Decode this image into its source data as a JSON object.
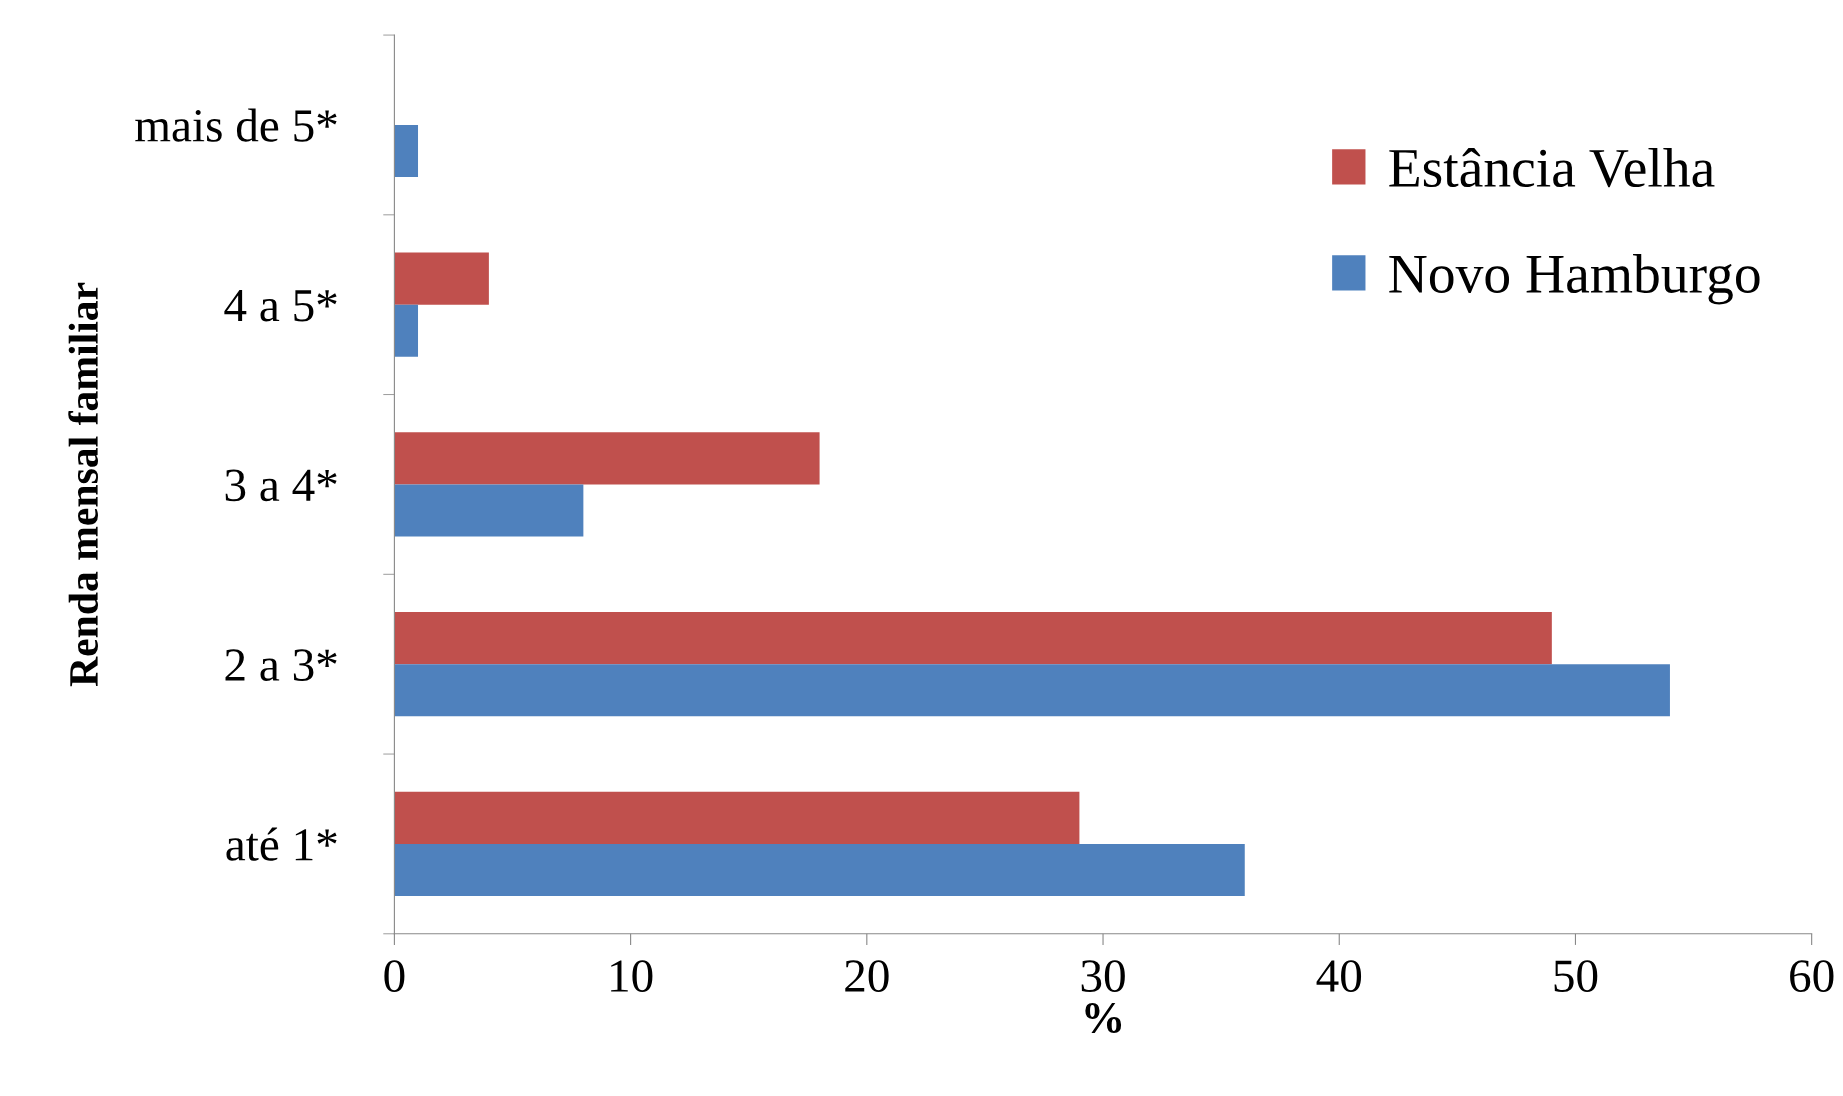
{
  "chart_data": {
    "type": "bar",
    "orientation": "horizontal",
    "xlabel": "%",
    "ylabel": "Renda mensal familiar",
    "categories": [
      "mais de 5*",
      "4 a 5*",
      "3 a 4*",
      "2 a 3*",
      "até 1*"
    ],
    "series": [
      {
        "name": "Estância Velha",
        "color": "#c0504d",
        "values": [
          0,
          4,
          18,
          49,
          29
        ]
      },
      {
        "name": "Novo Hamburgo",
        "color": "#4f81bd",
        "values": [
          1,
          1,
          8,
          54,
          36
        ]
      }
    ],
    "xlim": [
      0,
      60
    ],
    "xticks": [
      0,
      10,
      20,
      30,
      40,
      50,
      60
    ],
    "grid": false,
    "legend": "top right"
  }
}
